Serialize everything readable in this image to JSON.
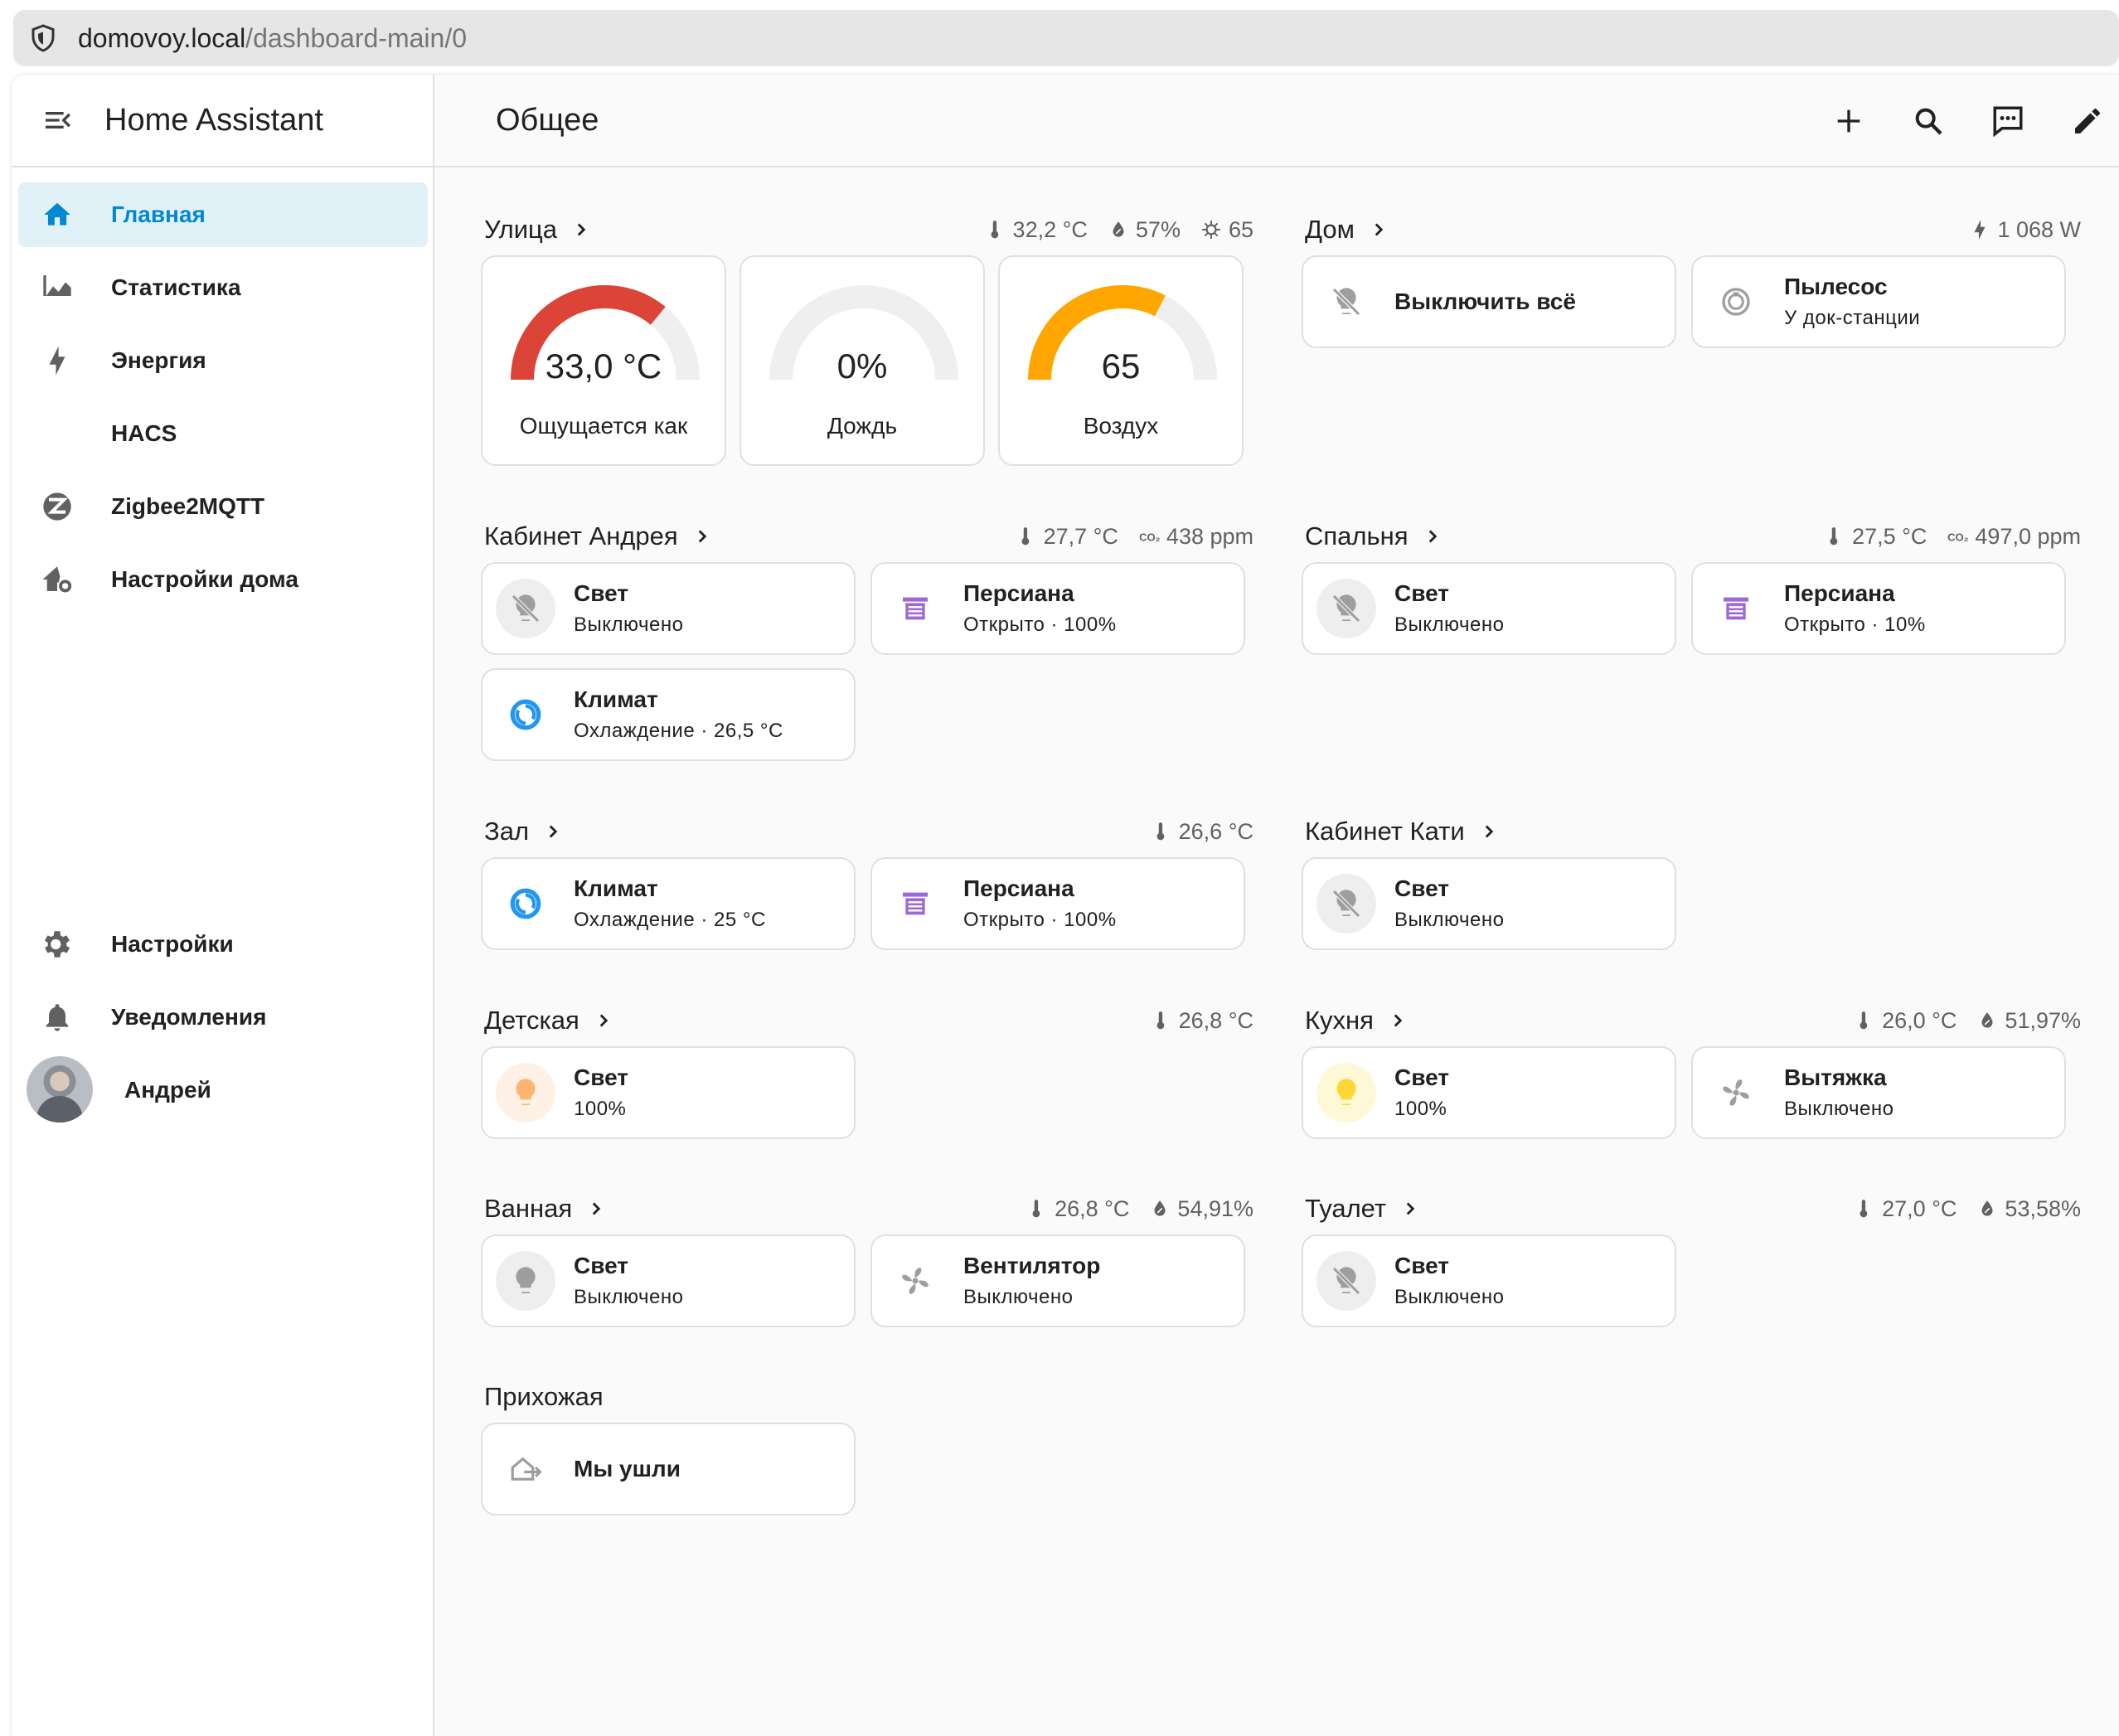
{
  "browser": {
    "url_host": "domovoy.local",
    "url_path": "/dashboard-main/0"
  },
  "sidebar": {
    "title": "Home Assistant",
    "items": [
      {
        "label": "Главная",
        "icon": "home-icon"
      },
      {
        "label": "Статистика",
        "icon": "chart-areaspline-icon"
      },
      {
        "label": "Энергия",
        "icon": "lightning-bolt-icon"
      },
      {
        "label": "HACS",
        "icon": ""
      },
      {
        "label": "Zigbee2MQTT",
        "icon": "zigbee-icon"
      },
      {
        "label": "Настройки дома",
        "icon": "home-cog-icon"
      }
    ],
    "bottom": [
      {
        "label": "Настройки",
        "icon": "cog-icon"
      },
      {
        "label": "Уведомления",
        "icon": "bell-icon"
      }
    ],
    "user": {
      "name": "Андрей"
    }
  },
  "topbar": {
    "title": "Общее"
  },
  "colors": {
    "accent": "#0288d1",
    "active_bg": "#e0f2f8",
    "gauge_red": "#db4437",
    "gauge_orange": "#ffa600",
    "blind_purple": "#9c6ad4",
    "climate_blue": "#2196f3",
    "light_on_amber": "#fdd835",
    "light_on_peach": "#ffb570"
  },
  "sections": {
    "street": {
      "title": "Улица",
      "temp": "32,2 °C",
      "humidity": "57%",
      "air": "65",
      "gauges": [
        {
          "value": "33,0 °C",
          "name": "Ощущается как",
          "level": 0.72,
          "color": "#db4437"
        },
        {
          "value": "0%",
          "name": "Дождь",
          "level": 0.0,
          "color": "#db4437"
        },
        {
          "value": "65",
          "name": "Воздух",
          "level": 0.65,
          "color": "#ffa600"
        }
      ]
    },
    "home": {
      "title": "Дом",
      "power": "1 068 W",
      "tiles": [
        {
          "name": "Выключить всё"
        },
        {
          "name": "Пылесос",
          "state": "У док-станции"
        }
      ]
    },
    "andrey": {
      "title": "Кабинет Андрея",
      "temp": "27,7 °C",
      "co2": "438 ppm",
      "tiles": [
        {
          "name": "Свет",
          "state": "Выключено"
        },
        {
          "name": "Персиана",
          "state": "Открыто · 100%"
        },
        {
          "name": "Климат",
          "state": "Охлаждение · 26,5 °C"
        }
      ]
    },
    "bedroom": {
      "title": "Спальня",
      "temp": "27,5 °C",
      "co2": "497,0 ppm",
      "tiles": [
        {
          "name": "Свет",
          "state": "Выключено"
        },
        {
          "name": "Персиана",
          "state": "Открыто · 10%"
        }
      ]
    },
    "hall": {
      "title": "Зал",
      "temp": "26,6 °C",
      "tiles": [
        {
          "name": "Климат",
          "state": "Охлаждение · 25 °C"
        },
        {
          "name": "Персиана",
          "state": "Открыто · 100%"
        }
      ]
    },
    "katya": {
      "title": "Кабинет Кати",
      "tiles": [
        {
          "name": "Свет",
          "state": "Выключено"
        }
      ]
    },
    "kids": {
      "title": "Детская",
      "temp": "26,8 °C",
      "tiles": [
        {
          "name": "Свет",
          "state": "100%"
        }
      ]
    },
    "kitchen": {
      "title": "Кухня",
      "temp": "26,0 °C",
      "humidity": "51,97%",
      "tiles": [
        {
          "name": "Свет",
          "state": "100%"
        },
        {
          "name": "Вытяжка",
          "state": "Выключено"
        }
      ]
    },
    "bath": {
      "title": "Ванная",
      "temp": "26,8 °C",
      "humidity": "54,91%",
      "tiles": [
        {
          "name": "Свет",
          "state": "Выключено"
        },
        {
          "name": "Вентилятор",
          "state": "Выключено"
        }
      ]
    },
    "toilet": {
      "title": "Туалет",
      "temp": "27,0 °C",
      "humidity": "53,58%",
      "tiles": [
        {
          "name": "Свет",
          "state": "Выключено"
        }
      ]
    },
    "hallway": {
      "title": "Прихожая",
      "tiles": [
        {
          "name": "Мы ушли"
        }
      ]
    }
  }
}
